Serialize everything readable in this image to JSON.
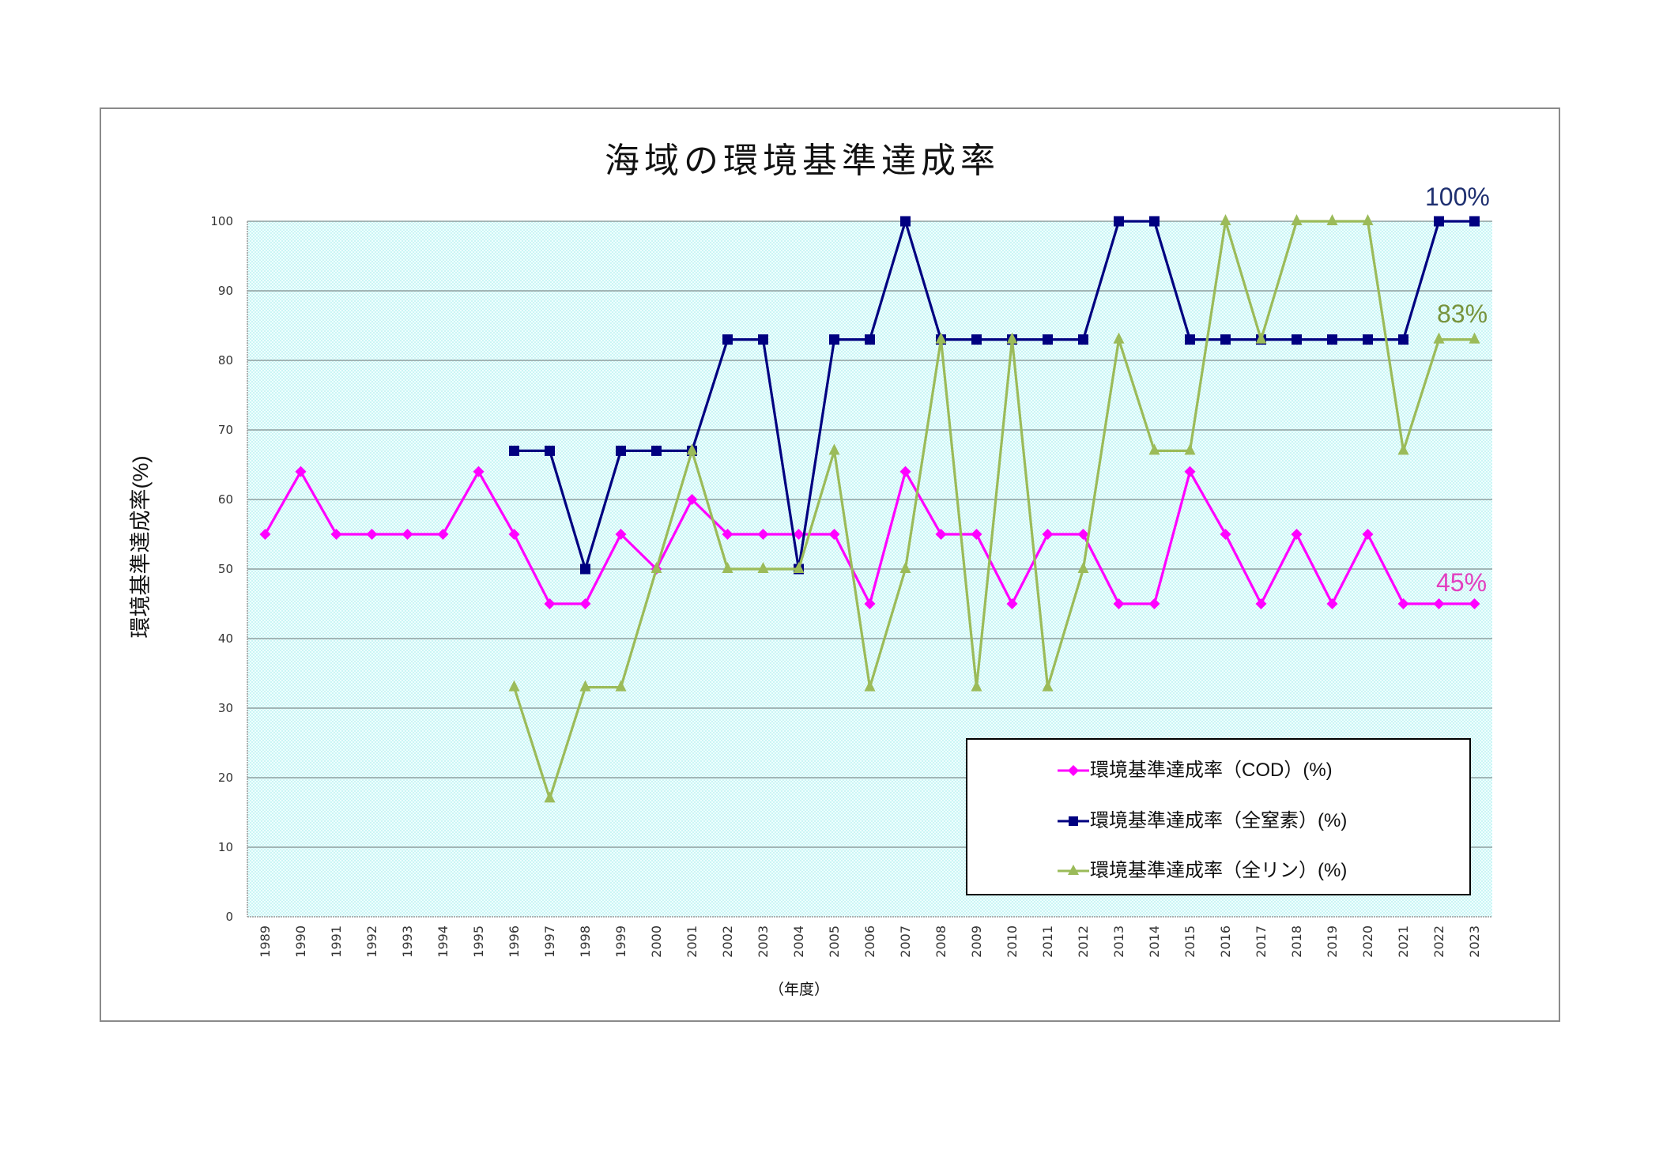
{
  "chart_data": {
    "type": "line",
    "title": "海域の環境基準達成率",
    "xlabel": "（年度）",
    "ylabel": "環境基準達成率(%)",
    "ylim": [
      0,
      100
    ],
    "yticks": [
      0,
      10,
      20,
      30,
      40,
      50,
      60,
      70,
      80,
      90,
      100
    ],
    "grid": true,
    "legend_position": "lower right, inside plot area",
    "plot_background": "#DDFAFA",
    "categories": [
      "1989",
      "1990",
      "1991",
      "1992",
      "1993",
      "1994",
      "1995",
      "1996",
      "1997",
      "1998",
      "1999",
      "2000",
      "2001",
      "2002",
      "2003",
      "2004",
      "2005",
      "2006",
      "2007",
      "2008",
      "2009",
      "2010",
      "2011",
      "2012",
      "2013",
      "2014",
      "2015",
      "2016",
      "2017",
      "2018",
      "2019",
      "2020",
      "2021",
      "2022",
      "2023"
    ],
    "series": [
      {
        "name": "環境基準達成率（COD）(%)",
        "color": "#FF00FF",
        "marker": "diamond",
        "values": [
          55,
          64,
          55,
          55,
          55,
          55,
          64,
          55,
          45,
          45,
          55,
          50,
          60,
          55,
          55,
          55,
          55,
          45,
          64,
          55,
          55,
          45,
          55,
          55,
          45,
          45,
          64,
          55,
          45,
          55,
          45,
          55,
          45,
          45,
          45
        ]
      },
      {
        "name": "環境基準達成率（全窒素）(%)",
        "color": "#000080",
        "marker": "square",
        "values": [
          null,
          null,
          null,
          null,
          null,
          null,
          null,
          67,
          67,
          50,
          67,
          67,
          67,
          83,
          83,
          50,
          83,
          83,
          100,
          83,
          83,
          83,
          83,
          83,
          100,
          100,
          83,
          83,
          83,
          83,
          83,
          83,
          83,
          100,
          100
        ]
      },
      {
        "name": "環境基準達成率（全リン）(%)",
        "color": "#9BBB59",
        "marker": "triangle",
        "values": [
          null,
          null,
          null,
          null,
          null,
          null,
          null,
          33,
          17,
          33,
          33,
          50,
          67,
          50,
          50,
          50,
          67,
          33,
          50,
          83,
          33,
          83,
          33,
          50,
          83,
          67,
          67,
          100,
          83,
          100,
          100,
          100,
          67,
          83,
          83
        ]
      }
    ],
    "annotations": [
      {
        "text": "100%",
        "series": "環境基準達成率（全窒素）(%)",
        "color": "#1F3070"
      },
      {
        "text": "83%",
        "series": "環境基準達成率（全リン）(%)",
        "color": "#77933C"
      },
      {
        "text": "45%",
        "series": "環境基準達成率（COD）(%)",
        "color": "#E33FBF"
      }
    ]
  }
}
